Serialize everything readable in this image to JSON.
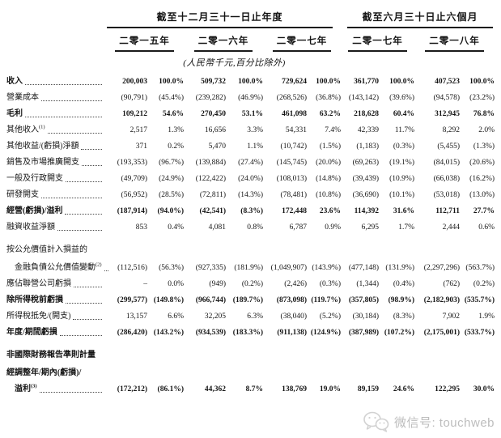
{
  "table": {
    "header": {
      "group1": "截至十二月三十一日止年度",
      "group2": "截至六月三十日止六個月",
      "years": [
        "二零一五年",
        "二零一六年",
        "二零一七年",
        "二零一七年",
        "二零一八年"
      ],
      "unit_note": "(人民幣千元,百分比除外)"
    },
    "rows": [
      {
        "label": "收入",
        "sup": "",
        "bold": true,
        "indent": 0,
        "gap": false,
        "values": [
          "200,003",
          "100.0%",
          "509,732",
          "100.0%",
          "729,624",
          "100.0%",
          "361,770",
          "100.0%",
          "407,523",
          "100.0%"
        ]
      },
      {
        "label": "營業成本",
        "sup": "",
        "bold": false,
        "indent": 0,
        "gap": false,
        "values": [
          "(90,791)",
          "(45.4%)",
          "(239,282)",
          "(46.9%)",
          "(268,526)",
          "(36.8%)",
          "(143,142)",
          "(39.6%)",
          "(94,578)",
          "(23.2%)"
        ]
      },
      {
        "label": "毛利",
        "sup": "",
        "bold": true,
        "indent": 0,
        "gap": false,
        "values": [
          "109,212",
          "54.6%",
          "270,450",
          "53.1%",
          "461,098",
          "63.2%",
          "218,628",
          "60.4%",
          "312,945",
          "76.8%"
        ]
      },
      {
        "label": "其他收入",
        "sup": "(1)",
        "bold": false,
        "indent": 0,
        "gap": false,
        "values": [
          "2,517",
          "1.3%",
          "16,656",
          "3.3%",
          "54,331",
          "7.4%",
          "42,339",
          "11.7%",
          "8,292",
          "2.0%"
        ]
      },
      {
        "label": "其他收益/(虧損)淨額",
        "sup": "",
        "bold": false,
        "indent": 0,
        "gap": false,
        "values": [
          "371",
          "0.2%",
          "5,470",
          "1.1%",
          "(10,742)",
          "(1.5%)",
          "(1,183)",
          "(0.3%)",
          "(5,455)",
          "(1.3%)"
        ]
      },
      {
        "label": "銷售及市場推廣開支",
        "sup": "",
        "bold": false,
        "indent": 0,
        "gap": false,
        "values": [
          "(193,353)",
          "(96.7%)",
          "(139,884)",
          "(27.4%)",
          "(145,745)",
          "(20.0%)",
          "(69,263)",
          "(19.1%)",
          "(84,015)",
          "(20.6%)"
        ]
      },
      {
        "label": "一般及行政開支",
        "sup": "",
        "bold": false,
        "indent": 0,
        "gap": false,
        "values": [
          "(49,709)",
          "(24.9%)",
          "(122,422)",
          "(24.0%)",
          "(108,013)",
          "(14.8%)",
          "(39,439)",
          "(10.9%)",
          "(66,038)",
          "(16.2%)"
        ]
      },
      {
        "label": "研發開支",
        "sup": "",
        "bold": false,
        "indent": 0,
        "gap": false,
        "values": [
          "(56,952)",
          "(28.5%)",
          "(72,811)",
          "(14.3%)",
          "(78,481)",
          "(10.8%)",
          "(36,690)",
          "(10.1%)",
          "(53,018)",
          "(13.0%)"
        ]
      },
      {
        "label": "經營(虧損)/溢利",
        "sup": "",
        "bold": true,
        "indent": 0,
        "gap": false,
        "values": [
          "(187,914)",
          "(94.0%)",
          "(42,541)",
          "(8.3%)",
          "172,448",
          "23.6%",
          "114,392",
          "31.6%",
          "112,711",
          "27.7%"
        ]
      },
      {
        "label": "融資收益淨額",
        "sup": "",
        "bold": false,
        "indent": 0,
        "gap": false,
        "values": [
          "853",
          "0.4%",
          "4,081",
          "0.8%",
          "6,787",
          "0.9%",
          "6,295",
          "1.7%",
          "2,444",
          "0.6%"
        ]
      },
      {
        "label": "按公允價值計入損益的",
        "sup": "",
        "bold": false,
        "indent": 0,
        "gap": true,
        "values": []
      },
      {
        "label": "金融負債公允價值變動",
        "sup": "(2)",
        "bold": false,
        "indent": 1,
        "gap": false,
        "values": [
          "(112,516)",
          "(56.3%)",
          "(927,335)",
          "(181.9%)",
          "(1,049,907)",
          "(143.9%)",
          "(477,148)",
          "(131.9%)",
          "(2,297,296)",
          "(563.7%)"
        ]
      },
      {
        "label": "應佔聯營公司虧損",
        "sup": "",
        "bold": false,
        "indent": 0,
        "gap": false,
        "values": [
          "–",
          "0.0%",
          "(949)",
          "(0.2%)",
          "(2,426)",
          "(0.3%)",
          "(1,344)",
          "(0.4%)",
          "(762)",
          "(0.2%)"
        ]
      },
      {
        "label": "除所得稅前虧損",
        "sup": "",
        "bold": true,
        "indent": 0,
        "gap": false,
        "values": [
          "(299,577)",
          "(149.8%)",
          "(966,744)",
          "(189.7%)",
          "(873,098)",
          "(119.7%)",
          "(357,805)",
          "(98.9%)",
          "(2,182,903)",
          "(535.7%)"
        ]
      },
      {
        "label": "所得稅抵免/(開支)",
        "sup": "",
        "bold": false,
        "indent": 0,
        "gap": false,
        "values": [
          "13,157",
          "6.6%",
          "32,205",
          "6.3%",
          "(38,040)",
          "(5.2%)",
          "(30,184)",
          "(8.3%)",
          "7,902",
          "1.9%"
        ]
      },
      {
        "label": "年度/期間虧損",
        "sup": "",
        "bold": true,
        "indent": 0,
        "gap": false,
        "values": [
          "(286,420)",
          "(143.2%)",
          "(934,539)",
          "(183.3%)",
          "(911,138)",
          "(124.9%)",
          "(387,989)",
          "(107.2%)",
          "(2,175,001)",
          "(533.7%)"
        ]
      },
      {
        "label": "非國際財務報告準則計量",
        "sup": "",
        "bold": true,
        "indent": 0,
        "gap": true,
        "values": []
      },
      {
        "label": "經調整年/期內(虧損)/",
        "sup": "",
        "bold": true,
        "indent": 0,
        "gap": false,
        "values": []
      },
      {
        "label": "溢利",
        "sup": "(3)",
        "bold": true,
        "indent": 1,
        "gap": false,
        "values": [
          "(172,212)",
          "(86.1%)",
          "44,362",
          "8.7%",
          "138,769",
          "19.0%",
          "89,159",
          "24.6%",
          "122,295",
          "30.0%"
        ]
      }
    ]
  },
  "watermark": {
    "icon": "wechat-icon",
    "text": "微信号: touchweb"
  }
}
